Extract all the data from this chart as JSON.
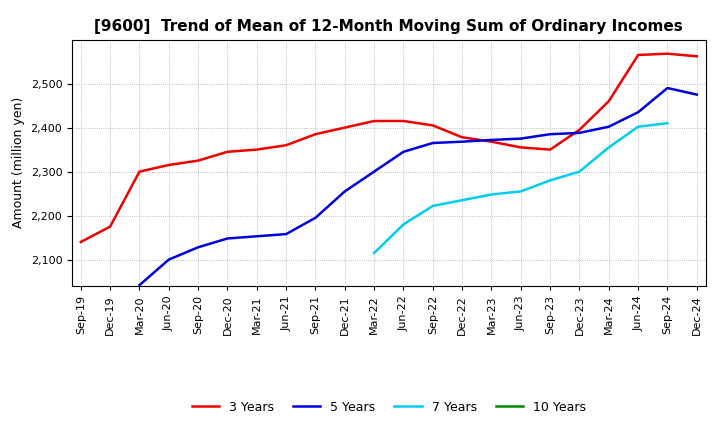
{
  "title": "[9600]  Trend of Mean of 12-Month Moving Sum of Ordinary Incomes",
  "ylabel": "Amount (million yen)",
  "background_color": "#ffffff",
  "plot_bg_color": "#ffffff",
  "grid_color": "#aaaaaa",
  "title_fontsize": 11,
  "label_fontsize": 9,
  "tick_fontsize": 8,
  "x_labels": [
    "Sep-19",
    "Dec-19",
    "Mar-20",
    "Jun-20",
    "Sep-20",
    "Dec-20",
    "Mar-21",
    "Jun-21",
    "Sep-21",
    "Dec-21",
    "Mar-22",
    "Jun-22",
    "Sep-22",
    "Dec-22",
    "Mar-23",
    "Jun-23",
    "Sep-23",
    "Dec-23",
    "Mar-24",
    "Jun-24",
    "Sep-24",
    "Dec-24"
  ],
  "series": {
    "3 Years": {
      "color": "#ee0000",
      "data_x": [
        0,
        1,
        2,
        3,
        4,
        5,
        6,
        7,
        8,
        9,
        10,
        11,
        12,
        13,
        14,
        15,
        16,
        17,
        18,
        19,
        20,
        21
      ],
      "data_y": [
        2140,
        2175,
        2300,
        2315,
        2325,
        2345,
        2350,
        2360,
        2385,
        2400,
        2415,
        2415,
        2405,
        2378,
        2368,
        2355,
        2350,
        2395,
        2460,
        2565,
        2568,
        2562
      ]
    },
    "5 Years": {
      "color": "#0000dd",
      "data_x": [
        2,
        3,
        4,
        5,
        6,
        7,
        8,
        9,
        10,
        11,
        12,
        13,
        14,
        15,
        16,
        17,
        18,
        19,
        20,
        21
      ],
      "data_y": [
        2042,
        2100,
        2128,
        2148,
        2153,
        2158,
        2195,
        2255,
        2300,
        2345,
        2365,
        2368,
        2372,
        2375,
        2385,
        2388,
        2402,
        2435,
        2490,
        2475
      ]
    },
    "7 Years": {
      "color": "#00ccee",
      "data_x": [
        10,
        11,
        12,
        13,
        14,
        15,
        16,
        17,
        18,
        19,
        20
      ],
      "data_y": [
        2115,
        2180,
        2222,
        2235,
        2248,
        2255,
        2280,
        2300,
        2355,
        2402,
        2410
      ]
    },
    "10 Years": {
      "color": "#008800",
      "data_x": [],
      "data_y": []
    }
  },
  "ylim": [
    2040,
    2600
  ],
  "yticks": [
    2100,
    2200,
    2300,
    2400,
    2500
  ],
  "legend_labels": [
    "3 Years",
    "5 Years",
    "7 Years",
    "10 Years"
  ]
}
